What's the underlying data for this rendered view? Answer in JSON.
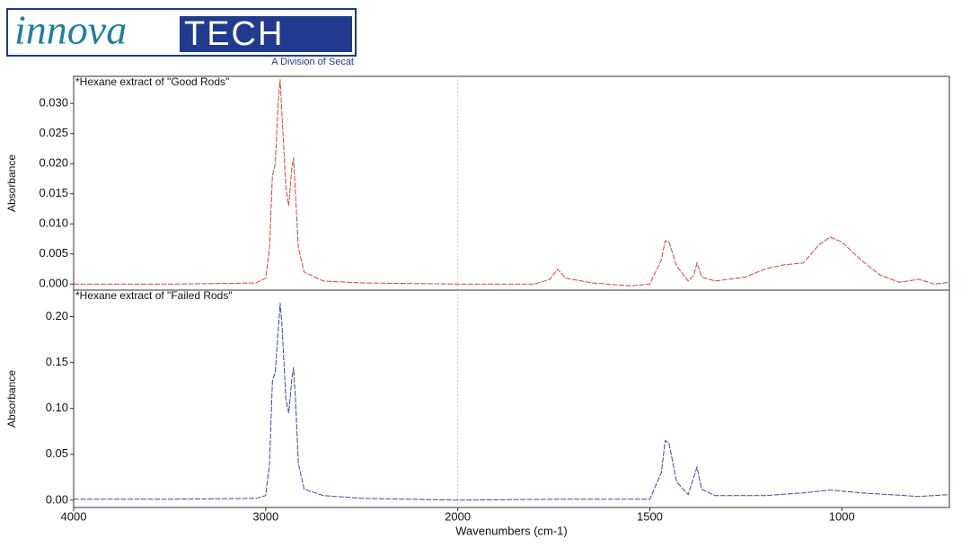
{
  "logo": {
    "script": "innova",
    "block": "TECH",
    "tagline": "A Division of Secat"
  },
  "chart_data": [
    {
      "type": "line",
      "title": "*Hexane extract of \"Good Rods\"",
      "ylabel": "Absorbance",
      "xlim": [
        4000,
        720
      ],
      "x_scale_break": 2000,
      "x_scale_factor": 2,
      "ylim": [
        -0.001,
        0.0345
      ],
      "yticks": [
        {
          "value": 0,
          "label": "0.000"
        },
        {
          "value": 0.005,
          "label": "0.005"
        },
        {
          "value": 0.01,
          "label": "0.010"
        },
        {
          "value": 0.015,
          "label": "0.015"
        },
        {
          "value": 0.02,
          "label": "0.020"
        },
        {
          "value": 0.025,
          "label": "0.025"
        },
        {
          "value": 0.03,
          "label": "0.030"
        }
      ],
      "color": "#d9443c",
      "x": [
        4000,
        3500,
        3200,
        3050,
        3000,
        2980,
        2965,
        2950,
        2935,
        2925,
        2915,
        2895,
        2880,
        2865,
        2855,
        2845,
        2830,
        2800,
        2700,
        2500,
        2000,
        1800,
        1760,
        1740,
        1720,
        1650,
        1550,
        1500,
        1470,
        1460,
        1450,
        1430,
        1400,
        1385,
        1377,
        1365,
        1330,
        1250,
        1200,
        1150,
        1100,
        1060,
        1030,
        1000,
        950,
        900,
        850,
        800,
        760,
        720
      ],
      "values": [
        0.0,
        0.0,
        0.0001,
        0.0002,
        0.001,
        0.006,
        0.018,
        0.02,
        0.03,
        0.034,
        0.028,
        0.016,
        0.013,
        0.019,
        0.021,
        0.015,
        0.006,
        0.002,
        0.0005,
        0.0002,
        0.0,
        0.0,
        0.0008,
        0.0025,
        0.001,
        0.0002,
        -0.0003,
        0.0,
        0.004,
        0.0072,
        0.007,
        0.003,
        0.0005,
        0.0015,
        0.0035,
        0.0012,
        0.0005,
        0.0012,
        0.0025,
        0.0032,
        0.0035,
        0.0065,
        0.0078,
        0.007,
        0.004,
        0.0015,
        0.0003,
        0.0008,
        0.0,
        0.0003
      ]
    },
    {
      "type": "line",
      "title": "*Hexane extract of \"Failed Rods\"",
      "ylabel": "Absorbance",
      "xlabel": "Wavenumbers (cm-1)",
      "xlim": [
        4000,
        720
      ],
      "x_scale_break": 2000,
      "x_scale_factor": 2,
      "xticks": [
        4000,
        3000,
        2000,
        1500,
        1000
      ],
      "ylim": [
        -0.008,
        0.229
      ],
      "yticks": [
        {
          "value": 0,
          "label": "0.00"
        },
        {
          "value": 0.05,
          "label": "0.05"
        },
        {
          "value": 0.1,
          "label": "0.10"
        },
        {
          "value": 0.15,
          "label": "0.15"
        },
        {
          "value": 0.2,
          "label": "0.20"
        }
      ],
      "color": "#3a4a9a",
      "x": [
        4000,
        3500,
        3050,
        3000,
        2980,
        2965,
        2950,
        2925,
        2915,
        2895,
        2880,
        2865,
        2855,
        2845,
        2830,
        2800,
        2700,
        2500,
        2000,
        1740,
        1500,
        1470,
        1460,
        1450,
        1430,
        1400,
        1377,
        1365,
        1330,
        1200,
        1100,
        1030,
        950,
        800,
        720
      ],
      "values": [
        0.001,
        0.001,
        0.002,
        0.005,
        0.04,
        0.13,
        0.14,
        0.215,
        0.19,
        0.11,
        0.095,
        0.13,
        0.145,
        0.11,
        0.04,
        0.012,
        0.005,
        0.002,
        0.0,
        0.001,
        0.001,
        0.03,
        0.065,
        0.062,
        0.02,
        0.006,
        0.036,
        0.012,
        0.005,
        0.005,
        0.008,
        0.011,
        0.008,
        0.004,
        0.006
      ]
    }
  ]
}
